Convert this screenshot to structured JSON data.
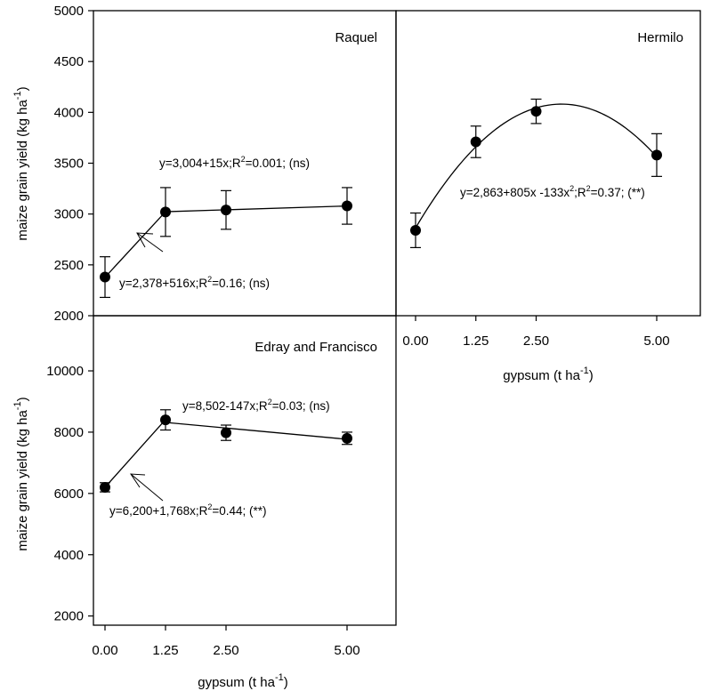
{
  "chart_data": [
    {
      "type": "scatter",
      "panel": "Raquel",
      "title": "Raquel",
      "ylabel": "maize grain yield (kg ha",
      "ylabel_sup": "-1",
      "ylabel_close": ")",
      "xlabel": "",
      "x": [
        0,
        1.25,
        2.5,
        5
      ],
      "y": [
        2380,
        3020,
        3040,
        3080
      ],
      "error": [
        200,
        240,
        190,
        180
      ],
      "ylim": [
        2000,
        5000
      ],
      "yticks": [
        "2000",
        "2500",
        "3000",
        "3500",
        "4000",
        "4500",
        "5000"
      ],
      "xticks": [],
      "fits": [
        {
          "kind": "linear",
          "from": 0,
          "to": 1.25,
          "a": 2378,
          "b": 516
        },
        {
          "kind": "linear",
          "from": 1.25,
          "to": 5,
          "a": 3004,
          "b": 15
        }
      ],
      "annotations": [
        {
          "pre": "y=3,004+15x;R",
          "sup": "2",
          "post": "=0.001; (ns)"
        },
        {
          "pre": "y=2,378+516x;R",
          "sup": "2",
          "post": "=0.16; (ns)"
        }
      ]
    },
    {
      "type": "scatter",
      "panel": "Hermilo",
      "title": "Hermilo",
      "xlabel": "gypsum (t ha",
      "xlabel_sup": "-1",
      "xlabel_close": ")",
      "x": [
        0,
        1.25,
        2.5,
        5
      ],
      "y": [
        2840,
        3710,
        4010,
        3580
      ],
      "error": [
        170,
        155,
        120,
        210
      ],
      "ylim": [
        2000,
        5000
      ],
      "xticks": [
        "0.00",
        "1.25",
        "2.50",
        "5.00"
      ],
      "fits": [
        {
          "kind": "quadratic",
          "from": 0,
          "to": 5,
          "a": 2863,
          "b": 805,
          "c": -133
        }
      ],
      "annotations": [
        {
          "pre": "y=2,863+805x -133x",
          "sup": "2",
          "post": ";R",
          "sup2": "2",
          "post2": "=0.37; (**)"
        }
      ]
    },
    {
      "type": "scatter",
      "panel": "Edray and Francisco",
      "title": "Edray and Francisco",
      "ylabel": "maize grain yield (kg ha",
      "ylabel_sup": "-1",
      "ylabel_close": ")",
      "xlabel": "gypsum (t ha",
      "xlabel_sup": "-1",
      "xlabel_close": ")",
      "x": [
        0,
        1.25,
        2.5,
        5
      ],
      "y": [
        6200,
        8400,
        7980,
        7800
      ],
      "error": [
        150,
        330,
        250,
        200
      ],
      "ylim": [
        1700,
        11800
      ],
      "yticks": [
        "2000",
        "4000",
        "6000",
        "8000",
        "10000"
      ],
      "xticks": [
        "0.00",
        "1.25",
        "2.50",
        "5.00"
      ],
      "fits": [
        {
          "kind": "linear",
          "from": 0,
          "to": 1.25,
          "a": 6200,
          "b": 1768
        },
        {
          "kind": "linear",
          "from": 1.25,
          "to": 5,
          "a": 8502,
          "b": -147
        }
      ],
      "annotations": [
        {
          "pre": "y=8,502-147x;R",
          "sup": "2",
          "post": "=0.03; (ns)"
        },
        {
          "pre": "y=6,200+1,768x;R",
          "sup": "2",
          "post": "=0.44; (**)"
        }
      ]
    }
  ],
  "colors": {
    "ink": "#000000",
    "background": "#ffffff"
  }
}
